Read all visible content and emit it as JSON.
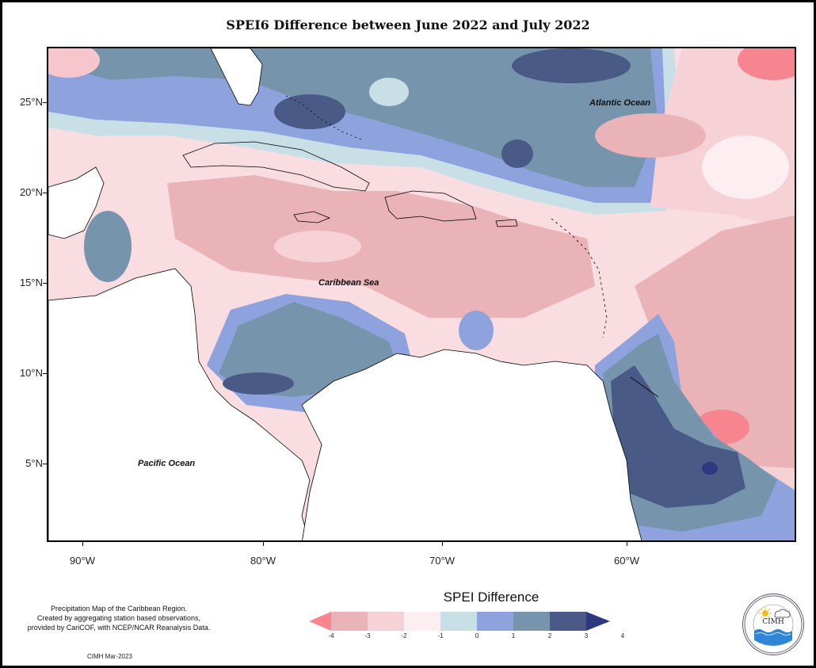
{
  "title": "SPEI6 Difference between June 2022 and July 2022",
  "map": {
    "lat_ticks": [
      "25°N",
      "20°N",
      "15°N",
      "10°N",
      "5°N"
    ],
    "lon_ticks": [
      "90°W",
      "80°W",
      "70°W",
      "60°W"
    ],
    "labels": {
      "atlantic": "Atlantic Ocean",
      "caribbean": "Caribbean Sea",
      "pacific": "Pacific Ocean"
    }
  },
  "legend": {
    "title": "SPEI Difference",
    "tick_labels": [
      "-4",
      "-3",
      "-2",
      "-1",
      "0",
      "1",
      "2",
      "3",
      "4"
    ],
    "colors": [
      "#f7858f",
      "#e9b3b8",
      "#f6d1d6",
      "#fdeff1",
      "#c8dfe6",
      "#8ea3de",
      "#7695ad",
      "#4a5a86",
      "#2e3880"
    ]
  },
  "credit": {
    "line1": "Precipitation Map of the Caribbean Region.",
    "line2": "Created by aggregating station based observations,",
    "line3": "provided by CariCOF, with NCEP/NCAR Reanalysis Data.",
    "date": "CIMH Mar-2023"
  },
  "logo": {
    "abbr": "CIMH",
    "arc_text": "Caribbean Institute for Meteorology and Hydrology"
  }
}
